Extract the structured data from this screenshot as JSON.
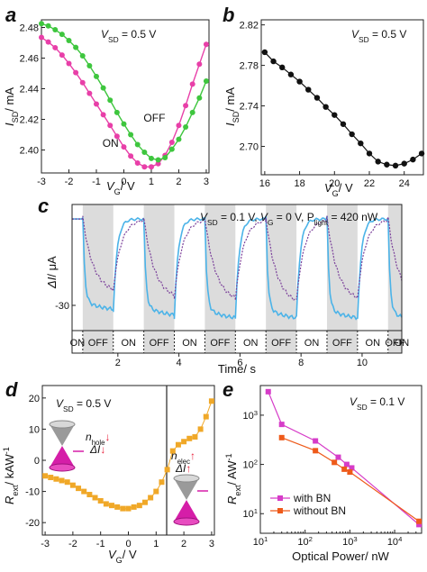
{
  "chart_data": [
    {
      "panel": "a",
      "type": "line",
      "annotation": {
        "var": "V",
        "sub": "SD",
        "rest": " = 0.5 V"
      },
      "xlabel": {
        "main": "V",
        "sub": "G",
        "rest": "/ V"
      },
      "ylabel": {
        "main": "I",
        "sub": "SD",
        "rest": "/ mA"
      },
      "xlim": [
        -3,
        3.1
      ],
      "ylim": [
        2.385,
        2.485
      ],
      "xticks": [
        -3,
        -2,
        -1,
        0,
        1,
        2,
        3
      ],
      "yticks": [
        "2.40",
        "2.42",
        "2.44",
        "2.46",
        "2.48"
      ],
      "series": [
        {
          "name": "ON",
          "color": "#e83fa8",
          "x": [
            -3.0,
            -2.75,
            -2.5,
            -2.25,
            -2.0,
            -1.75,
            -1.5,
            -1.25,
            -1.0,
            -0.75,
            -0.5,
            -0.25,
            0.0,
            0.25,
            0.5,
            0.75,
            1.0,
            1.25,
            1.5,
            1.75,
            2.0,
            2.25,
            2.5,
            2.75,
            3.0
          ],
          "y": [
            2.4735,
            2.4705,
            2.4668,
            2.462,
            2.4565,
            2.4505,
            2.444,
            2.437,
            2.43,
            2.423,
            2.416,
            2.409,
            2.402,
            2.396,
            2.3915,
            2.389,
            2.389,
            2.391,
            2.3965,
            2.405,
            2.416,
            2.429,
            2.443,
            2.456,
            2.469
          ]
        },
        {
          "name": "OFF",
          "color": "#3ec63e",
          "x": [
            -3.0,
            -2.75,
            -2.5,
            -2.25,
            -2.0,
            -1.75,
            -1.5,
            -1.25,
            -1.0,
            -0.75,
            -0.5,
            -0.25,
            0.0,
            0.25,
            0.5,
            0.75,
            1.0,
            1.25,
            1.5,
            1.75,
            2.0,
            2.25,
            2.5,
            2.75,
            3.0
          ],
          "y": [
            2.4825,
            2.481,
            2.4785,
            2.4755,
            2.4715,
            2.467,
            2.4615,
            2.455,
            2.448,
            2.4405,
            2.4325,
            2.4245,
            2.417,
            2.41,
            2.4035,
            2.3985,
            2.3945,
            2.3935,
            2.395,
            2.4005,
            2.407,
            2.415,
            2.4245,
            2.434,
            2.445
          ]
        }
      ],
      "labels": [
        {
          "text": "OFF",
          "x": 0.72,
          "y": 2.4185
        },
        {
          "text": "ON",
          "x": -0.78,
          "y": 2.402
        }
      ]
    },
    {
      "panel": "b",
      "type": "line",
      "annotation": {
        "var": "V",
        "sub": "SD",
        "rest": " = 0.5 V"
      },
      "xlabel": {
        "main": "V",
        "sub": "G",
        "rest": "/ V"
      },
      "ylabel": {
        "main": "I",
        "sub": "SD",
        "rest": "/ mA"
      },
      "xlim": [
        15.8,
        25.1
      ],
      "ylim": [
        2.672,
        2.825
      ],
      "xticks": [
        16,
        18,
        20,
        22,
        24
      ],
      "yticks": [
        "2.70",
        "2.74",
        "2.78",
        "2.82"
      ],
      "series": [
        {
          "name": "",
          "color": "#111111",
          "x": [
            16,
            16.5,
            17,
            17.5,
            18,
            18.5,
            19,
            19.5,
            20,
            20.5,
            21,
            21.5,
            22,
            22.5,
            23,
            23.5,
            24,
            24.5,
            25
          ],
          "y": [
            2.793,
            2.784,
            2.778,
            2.771,
            2.764,
            2.756,
            2.748,
            2.739,
            2.731,
            2.722,
            2.712,
            2.703,
            2.693,
            2.685,
            2.682,
            2.681,
            2.683,
            2.687,
            2.693
          ]
        }
      ]
    },
    {
      "panel": "c",
      "type": "line",
      "annotation": {
        "text": "V_SD = 0.1 V, V_G = 0 V, P_light = 420 nW",
        "parts": [
          [
            "V",
            "SD",
            " = 0.1 V, "
          ],
          [
            "V",
            "G",
            " = 0 V, "
          ],
          [
            "P",
            "light",
            " = 420 nW"
          ]
        ]
      },
      "xlabel": "Time/ s",
      "ylabel": {
        "main": "ΔI",
        "rest": "/ μA"
      },
      "xlim": [
        0.5,
        11.3
      ],
      "ylim": [
        -38,
        2
      ],
      "xticks": [
        2,
        4,
        6,
        8,
        10
      ],
      "yticks": [
        "-30"
      ],
      "on_periods": [
        [
          0.85,
          1.85
        ],
        [
          2.85,
          3.85
        ],
        [
          4.85,
          5.85
        ],
        [
          6.85,
          7.85
        ],
        [
          8.85,
          9.85
        ],
        [
          10.85,
          11.3
        ]
      ],
      "state_labels": [
        "ON",
        "OFF",
        "ON",
        "OFF",
        "ON",
        "OFF",
        "ON",
        "OFF",
        "ON",
        "OFF",
        "ON",
        "OFF",
        "ON"
      ],
      "series": [
        {
          "name": "",
          "color": "#4bb3e8",
          "style": "solid",
          "amplitude": [
            32,
            34,
            35,
            35,
            35,
            36
          ]
        },
        {
          "name": "",
          "color": "#7a3f9a",
          "style": "dotted",
          "amplitude": [
            26,
            28,
            29,
            30,
            29,
            29
          ]
        }
      ]
    },
    {
      "panel": "d",
      "type": "scatter",
      "annotation": {
        "var": "V",
        "sub": "SD",
        "rest": " = 0.5 V"
      },
      "xlabel": {
        "main": "V",
        "sub": "G",
        "rest": "/ V"
      },
      "ylabel": {
        "main": "R",
        "sub": "ext",
        "rest": "/ kAW",
        "sup": "-1"
      },
      "xlim": [
        -3.1,
        3.1
      ],
      "ylim": [
        -24,
        24
      ],
      "xticks": [
        -3,
        -2,
        -1,
        0,
        1,
        2,
        3
      ],
      "yticks": [
        -20,
        -10,
        0,
        10,
        20
      ],
      "divider_x": 1.38,
      "series": [
        {
          "name": "",
          "color": "#f0a828",
          "x": [
            -3.0,
            -2.8,
            -2.6,
            -2.4,
            -2.2,
            -2.0,
            -1.8,
            -1.6,
            -1.4,
            -1.2,
            -1.0,
            -0.8,
            -0.6,
            -0.4,
            -0.2,
            0.0,
            0.2,
            0.4,
            0.6,
            0.8,
            1.0,
            1.2,
            1.4,
            1.6,
            1.8,
            2.0,
            2.2,
            2.4,
            2.6,
            2.8,
            3.0
          ],
          "y": [
            -5,
            -5.5,
            -6,
            -6.5,
            -7,
            -8,
            -9,
            -10,
            -11,
            -12,
            -13,
            -14,
            -14.5,
            -15,
            -15.5,
            -15.5,
            -15,
            -14.5,
            -13.5,
            -12,
            -10,
            -7,
            -3,
            3,
            5,
            6,
            7,
            7.5,
            10,
            14,
            19
          ]
        }
      ],
      "labels": [
        {
          "main": "n",
          "sub": "hole",
          "arrow": "↓"
        },
        {
          "main": "ΔI",
          "arrow": "↓"
        },
        {
          "main": "n",
          "sub": "elec",
          "arrow": "↑"
        },
        {
          "main": "ΔI",
          "arrow": "↑"
        }
      ]
    },
    {
      "panel": "e",
      "type": "line",
      "annotation": {
        "var": "V",
        "sub": "SD",
        "rest": " = 0.1 V"
      },
      "xlabel": "Optical Power/ nW",
      "ylabel": {
        "main": "R",
        "sub": "ext",
        "rest": "/ AW",
        "sup": "-1"
      },
      "x_scale": "log",
      "y_scale": "log",
      "xlim": [
        10,
        40000
      ],
      "ylim": [
        4,
        4000
      ],
      "xticks": [
        "10",
        "10",
        "10",
        "10"
      ],
      "xtick_exponents": [
        "1",
        "2",
        "3",
        "4"
      ],
      "yticks": [
        "10",
        "10",
        "10"
      ],
      "ytick_exponents": [
        "1",
        "2",
        "3"
      ],
      "legend": "lower-left",
      "series": [
        {
          "name": "with BN",
          "color": "#d63cc8",
          "marker": "square",
          "x": [
            15,
            30,
            170,
            550,
            850,
            1100,
            35000
          ],
          "y": [
            3000,
            650,
            300,
            140,
            100,
            85,
            6
          ]
        },
        {
          "name": "without BN",
          "color": "#ee5a1a",
          "marker": "square",
          "x": [
            30,
            170,
            450,
            750,
            1000,
            35000
          ],
          "y": [
            350,
            190,
            110,
            80,
            70,
            7
          ]
        }
      ]
    }
  ]
}
